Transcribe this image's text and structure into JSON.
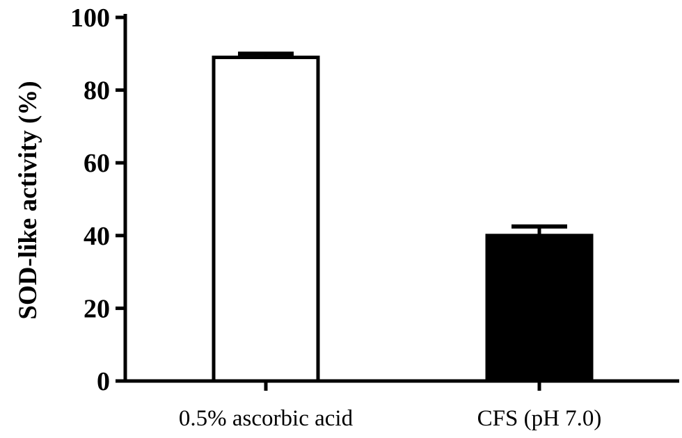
{
  "chart_data": {
    "type": "bar",
    "title": "",
    "xlabel": "",
    "ylabel": "SOD-like activity (%)",
    "ylim": [
      0,
      100
    ],
    "yticks": [
      "0",
      "20",
      "40",
      "60",
      "80",
      "100"
    ],
    "grid": false,
    "categories": [
      "0.5% ascorbic acid",
      "CFS (pH 7.0)"
    ],
    "values": [
      89,
      40
    ],
    "errors": [
      1,
      2.5
    ],
    "bar_fills": [
      "#ffffff",
      "#000000"
    ],
    "bar_edge": "#000000"
  }
}
